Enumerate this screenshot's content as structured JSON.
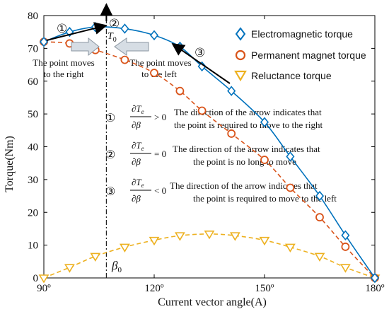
{
  "chart_data": {
    "type": "line",
    "xlabel": "Current vector angle(A)",
    "ylabel": "Torque(Nm)",
    "xlim": [
      90,
      180
    ],
    "ylim": [
      0,
      80
    ],
    "x_ticks": [
      90,
      120,
      150,
      180
    ],
    "x_tick_labels": [
      "90º",
      "120º",
      "150º",
      "180º"
    ],
    "y_ticks": [
      0,
      10,
      20,
      30,
      40,
      50,
      60,
      70,
      80
    ],
    "y_tick_labels": [
      "0",
      "10",
      "20",
      "30",
      "40",
      "50",
      "60",
      "70",
      "80"
    ],
    "grid": false,
    "legend_position": "top-right",
    "series": [
      {
        "name": "Electromagnetic torque",
        "color": "#0072BD",
        "style": "solid",
        "marker": "diamond",
        "x": [
          90,
          97,
          104,
          112,
          120,
          127,
          133,
          141,
          150,
          157,
          165,
          172,
          180
        ],
        "y": [
          72,
          75,
          76.5,
          76,
          74,
          70.5,
          64.5,
          57,
          47.5,
          37,
          25,
          13,
          0
        ]
      },
      {
        "name": "Permanent magnet torque",
        "color": "#D95319",
        "style": "dashed",
        "marker": "circle",
        "x": [
          90,
          97,
          104,
          112,
          120,
          127,
          133,
          141,
          150,
          157,
          165,
          172,
          180
        ],
        "y": [
          72,
          71.5,
          69.5,
          66.5,
          62.5,
          57,
          51,
          44,
          36,
          27.5,
          18.5,
          9.5,
          0
        ]
      },
      {
        "name": "Reluctance torque",
        "color": "#EDB120",
        "style": "dashed",
        "marker": "triangle-down",
        "x": [
          90,
          97,
          104,
          112,
          120,
          127,
          135,
          142,
          150,
          157,
          165,
          172,
          180
        ],
        "y": [
          0,
          3.2,
          6.6,
          9.4,
          11.5,
          12.9,
          13.4,
          12.9,
          11.5,
          9.4,
          6.6,
          3.2,
          0
        ]
      }
    ],
    "annotations": {
      "circle_1": "①",
      "circle_2": "②",
      "circle_3": "③",
      "t0_label": "T",
      "t0_sub": "0",
      "beta0_label": "β",
      "beta0_sub": "0",
      "beta0_x": 107,
      "move_right_line1": "The point moves",
      "move_right_line2": "to the right",
      "move_left_line1": "The point moves",
      "move_left_line2": "to the left",
      "frac_num": "∂T",
      "frac_num_sub": "e",
      "frac_den": "∂β",
      "cond_1_op": "> 0",
      "cond_2_op": "= 0",
      "cond_3_op": "< 0",
      "cond_1_line1": "The direction of the arrow indicates that",
      "cond_1_line2": "the point is required to move to the right",
      "cond_2_line1": "The direction of the arrow indicates that",
      "cond_2_line2": "the point is no long to move",
      "cond_3_line1": "The direction of the arrow indicates that",
      "cond_3_line2": "the point is required to move to the left"
    }
  }
}
